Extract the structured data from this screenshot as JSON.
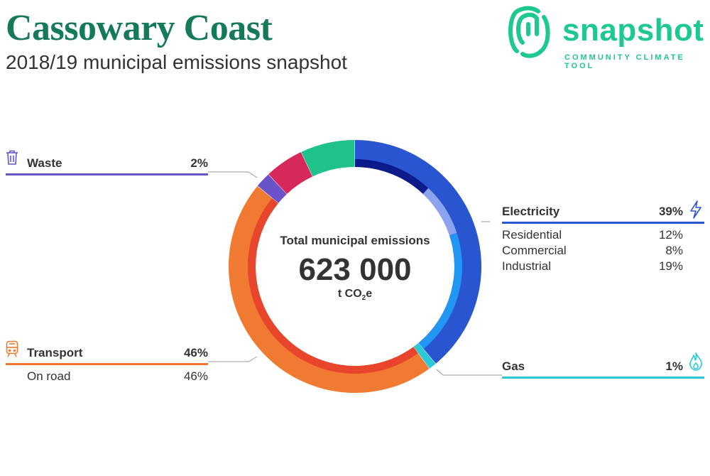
{
  "header": {
    "title": "Cassowary Coast",
    "subtitle": "2018/19 municipal emissions snapshot"
  },
  "brand": {
    "name": "snapshot",
    "tagline": "COMMUNITY CLIMATE TOOL",
    "color": "#1ec98f"
  },
  "center": {
    "label": "Total municipal emissions",
    "value": "623 000",
    "unit_prefix": "t CO",
    "unit_sub": "2",
    "unit_suffix": "e"
  },
  "categories": {
    "waste": {
      "label": "Waste",
      "pct": "2%",
      "color": "#6a52c9",
      "icon": "trash-icon"
    },
    "transport": {
      "label": "Transport",
      "pct": "46%",
      "color": "#f07a31",
      "icon": "train-icon",
      "sub": [
        {
          "label": "On road",
          "pct": "46%"
        }
      ]
    },
    "electricity": {
      "label": "Electricity",
      "pct": "39%",
      "color": "#2a55d0",
      "icon": "lightning-icon",
      "sub": [
        {
          "label": "Residential",
          "pct": "12%"
        },
        {
          "label": "Commercial",
          "pct": "8%"
        },
        {
          "label": "Industrial",
          "pct": "19%"
        }
      ]
    },
    "gas": {
      "label": "Gas",
      "pct": "1%",
      "color": "#2ec9d6",
      "icon": "flame-icon"
    }
  },
  "chart_data": {
    "type": "pie",
    "title": "Total municipal emissions",
    "total": 623000,
    "unit": "t CO2e",
    "outer": [
      {
        "name": "Electricity",
        "value": 39,
        "color": "#2a55d0"
      },
      {
        "name": "Gas",
        "value": 1,
        "color": "#2ec9d6"
      },
      {
        "name": "Transport",
        "value": 46,
        "color": "#f07a31"
      },
      {
        "name": "Waste",
        "value": 2,
        "color": "#6a52c9"
      },
      {
        "name": "Unlabelled (red)",
        "value": 5,
        "color": "#d6285a"
      },
      {
        "name": "Unlabelled (green)",
        "value": 7,
        "color": "#1ec28a"
      }
    ],
    "inner": [
      {
        "name": "Residential",
        "value": 12,
        "color": "#0c1a8a"
      },
      {
        "name": "Commercial",
        "value": 8,
        "color": "#8ea3ee"
      },
      {
        "name": "Industrial",
        "value": 19,
        "color": "#2196f3"
      },
      {
        "name": "Gas",
        "value": 1,
        "color": "#2ec9d6"
      },
      {
        "name": "On road",
        "value": 46,
        "color": "#e8452c"
      }
    ]
  }
}
